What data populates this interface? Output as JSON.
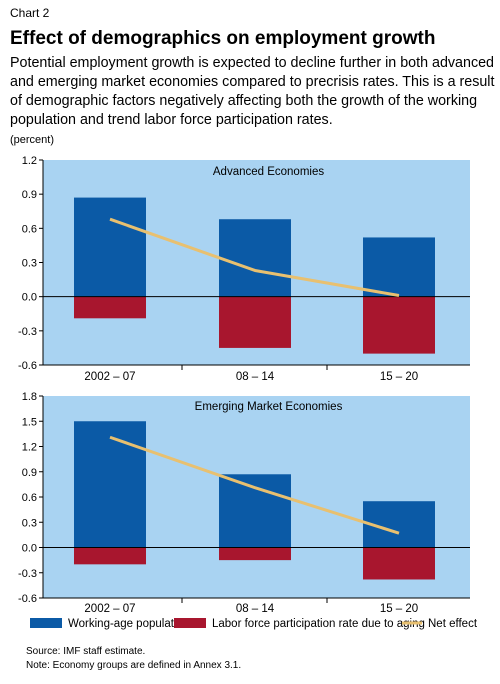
{
  "header": {
    "kicker": "Chart 2",
    "title": "Effect of demographics on employment growth",
    "subtitle": "Potential employment growth is expected to decline further in both advanced and emerging market economies compared to precrisis rates. This is a result of demographic factors negatively affecting both the growth of the working population and trend labor force participation rates.",
    "unit": "(percent)"
  },
  "colors": {
    "background": "#a9d3f2",
    "working_age": "#0b5aa6",
    "participation": "#a8162e",
    "net_effect": "#e8c070"
  },
  "legend": {
    "working_age": "Working-age population",
    "participation": "Labor force participation rate due to aging",
    "net": "Net effect"
  },
  "chart_data": [
    {
      "type": "bar",
      "title": "Advanced Economies",
      "categories": [
        "2002 – 07",
        "08 – 14",
        "15 – 20"
      ],
      "ylim": [
        -0.6,
        1.2
      ],
      "yticks": [
        "1.2",
        "0.9",
        "0.6",
        "0.3",
        "0.0",
        "-0.3",
        "-0.6"
      ],
      "grid": false,
      "series": [
        {
          "name": "Working-age population",
          "values": [
            0.87,
            0.68,
            0.52
          ]
        },
        {
          "name": "Labor force participation rate due to aging",
          "values": [
            -0.19,
            -0.45,
            -0.5
          ]
        },
        {
          "name": "Net effect",
          "type": "line",
          "values": [
            0.68,
            0.23,
            0.01
          ]
        }
      ]
    },
    {
      "type": "bar",
      "title": "Emerging Market Economies",
      "categories": [
        "2002 – 07",
        "08 – 14",
        "15 – 20"
      ],
      "ylim": [
        -0.6,
        1.8
      ],
      "yticks": [
        "1.8",
        "1.5",
        "1.2",
        "0.9",
        "0.6",
        "0.3",
        "0.0",
        "-0.3",
        "-0.6"
      ],
      "grid": false,
      "series": [
        {
          "name": "Working-age population",
          "values": [
            1.5,
            0.87,
            0.55
          ]
        },
        {
          "name": "Labor force participation rate due to aging",
          "values": [
            -0.2,
            -0.15,
            -0.38
          ]
        },
        {
          "name": "Net effect",
          "type": "line",
          "values": [
            1.31,
            0.71,
            0.17
          ]
        }
      ]
    }
  ],
  "footer": {
    "source": "Source: IMF staff estimate.",
    "note": "Note: Economy groups are defined in Annex 3.1."
  }
}
